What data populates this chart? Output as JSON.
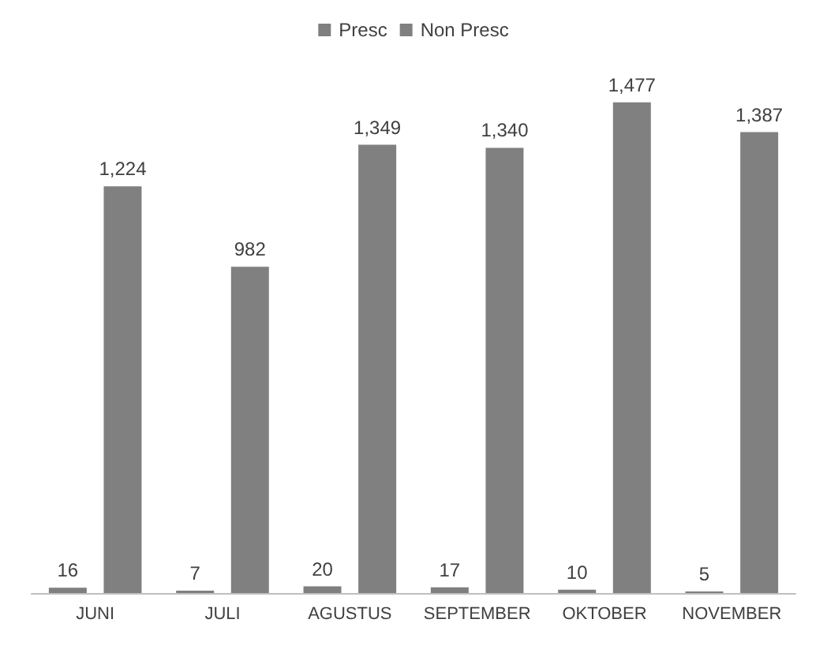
{
  "chart_data": {
    "type": "bar",
    "categories": [
      "JUNI",
      "JULI",
      "AGUSTUS",
      "SEPTEMBER",
      "OKTOBER",
      "NOVEMBER"
    ],
    "series": [
      {
        "name": "Presc",
        "color": "#7f7f7f",
        "values": [
          16,
          7,
          20,
          17,
          10,
          5
        ],
        "value_labels": [
          "16",
          "7",
          "20",
          "17",
          "10",
          "5"
        ]
      },
      {
        "name": "Non Presc",
        "color": "#808080",
        "values": [
          1224,
          982,
          1349,
          1340,
          1477,
          1387
        ],
        "value_labels": [
          "1,224",
          "982",
          "1,349",
          "1,340",
          "1,477",
          "1,387"
        ]
      }
    ],
    "legend": "top"
  }
}
